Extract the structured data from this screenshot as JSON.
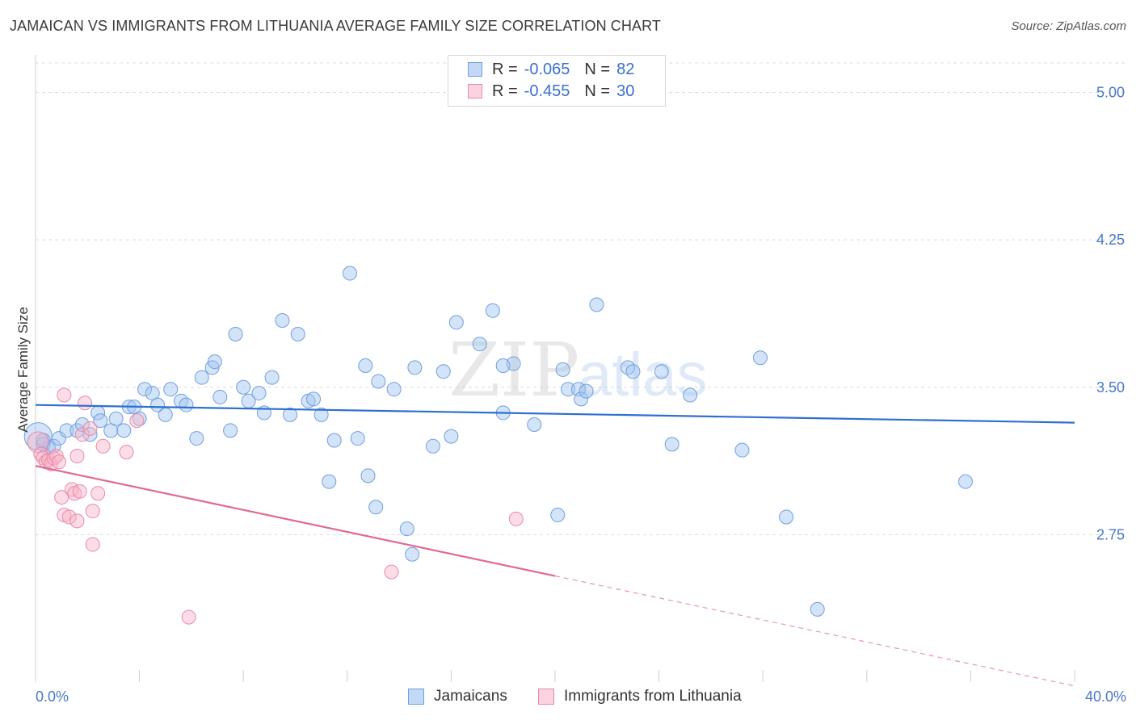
{
  "header": {
    "title": "JAMAICAN VS IMMIGRANTS FROM LITHUANIA AVERAGE FAMILY SIZE CORRELATION CHART",
    "source": "Source: ZipAtlas.com"
  },
  "watermark": {
    "zip": "ZIP",
    "atlas": "atlas"
  },
  "legend_top": [
    {
      "r_label": "R =",
      "r_value": "-0.065",
      "n_label": "N =",
      "n_value": "82",
      "color": "#a9c8f0",
      "border": "#6f9fdf"
    },
    {
      "r_label": "R =",
      "r_value": "-0.455",
      "n_label": "N =",
      "n_value": "30",
      "color": "#f8c3d4",
      "border": "#e88aa9"
    }
  ],
  "legend_bottom": [
    {
      "label": "Jamaicans",
      "color": "#a9c8f0",
      "border": "#6f9fdf"
    },
    {
      "label": "Immigrants from Lithuania",
      "color": "#f8c3d4",
      "border": "#e88aa9"
    }
  ],
  "colors": {
    "blue_fill": "rgba(160,195,240,0.45)",
    "blue_stroke": "#6f9fdf",
    "blue_line": "#2f6fd0",
    "pink_fill": "rgba(248,180,200,0.45)",
    "pink_stroke": "#e88aa9",
    "pink_line": "#e06a92",
    "tick_text": "#4a78c8",
    "grid": "#dcdcdc"
  },
  "chart_data": {
    "type": "scatter",
    "title": "JAMAICAN VS IMMIGRANTS FROM LITHUANIA AVERAGE FAMILY SIZE CORRELATION CHART",
    "xlabel": "",
    "ylabel": "Average Family Size",
    "xlim": [
      0,
      40
    ],
    "ylim": [
      2.0,
      5.15
    ],
    "x_tick_labels": [
      "0.0%",
      "40.0%"
    ],
    "y_ticks": [
      2.75,
      3.5,
      4.25,
      5.0
    ],
    "y_tick_labels": [
      "2.75",
      "3.50",
      "4.25",
      "5.00"
    ],
    "grid": true,
    "legend": "top-center",
    "series": [
      {
        "name": "Jamaicans",
        "R": -0.065,
        "N": 82,
        "trend": {
          "x0": 0,
          "y0": 3.41,
          "x1": 40,
          "y1": 3.32
        },
        "points": [
          [
            0.1,
            3.25
          ],
          [
            0.3,
            3.21
          ],
          [
            0.5,
            3.19
          ],
          [
            0.7,
            3.2
          ],
          [
            0.9,
            3.24
          ],
          [
            1.2,
            3.28
          ],
          [
            1.6,
            3.28
          ],
          [
            1.8,
            3.31
          ],
          [
            2.1,
            3.26
          ],
          [
            2.4,
            3.37
          ],
          [
            2.5,
            3.33
          ],
          [
            2.9,
            3.28
          ],
          [
            3.1,
            3.34
          ],
          [
            3.4,
            3.28
          ],
          [
            3.6,
            3.4
          ],
          [
            3.8,
            3.4
          ],
          [
            4.0,
            3.34
          ],
          [
            4.2,
            3.49
          ],
          [
            4.5,
            3.47
          ],
          [
            4.7,
            3.41
          ],
          [
            5.0,
            3.36
          ],
          [
            5.2,
            3.49
          ],
          [
            5.6,
            3.43
          ],
          [
            5.8,
            3.41
          ],
          [
            6.2,
            3.24
          ],
          [
            6.4,
            3.55
          ],
          [
            6.8,
            3.6
          ],
          [
            6.9,
            3.63
          ],
          [
            7.1,
            3.45
          ],
          [
            7.5,
            3.28
          ],
          [
            7.7,
            3.77
          ],
          [
            8.0,
            3.5
          ],
          [
            8.2,
            3.43
          ],
          [
            8.6,
            3.47
          ],
          [
            8.8,
            3.37
          ],
          [
            9.1,
            3.55
          ],
          [
            9.5,
            3.84
          ],
          [
            9.8,
            3.36
          ],
          [
            10.1,
            3.77
          ],
          [
            10.5,
            3.43
          ],
          [
            10.7,
            3.44
          ],
          [
            11.0,
            3.36
          ],
          [
            11.3,
            3.02
          ],
          [
            11.5,
            3.23
          ],
          [
            12.1,
            4.08
          ],
          [
            12.4,
            3.24
          ],
          [
            12.7,
            3.61
          ],
          [
            12.8,
            3.05
          ],
          [
            13.1,
            2.89
          ],
          [
            13.2,
            3.53
          ],
          [
            13.8,
            3.49
          ],
          [
            14.3,
            2.78
          ],
          [
            14.5,
            2.65
          ],
          [
            14.6,
            3.6
          ],
          [
            15.3,
            3.2
          ],
          [
            15.7,
            3.58
          ],
          [
            16.0,
            3.25
          ],
          [
            16.2,
            3.83
          ],
          [
            17.1,
            3.72
          ],
          [
            17.6,
            3.89
          ],
          [
            18.0,
            3.37
          ],
          [
            18.4,
            3.62
          ],
          [
            18.0,
            3.61
          ],
          [
            19.2,
            3.31
          ],
          [
            20.1,
            2.85
          ],
          [
            20.3,
            3.59
          ],
          [
            20.5,
            3.49
          ],
          [
            20.9,
            3.49
          ],
          [
            21.0,
            3.44
          ],
          [
            21.2,
            3.48
          ],
          [
            21.6,
            3.92
          ],
          [
            22.8,
            3.6
          ],
          [
            23.0,
            3.58
          ],
          [
            24.1,
            3.58
          ],
          [
            24.5,
            3.21
          ],
          [
            25.2,
            3.46
          ],
          [
            27.2,
            3.18
          ],
          [
            27.9,
            3.65
          ],
          [
            28.9,
            2.84
          ],
          [
            30.1,
            2.37
          ],
          [
            35.8,
            3.02
          ],
          [
            0.3,
            3.23
          ]
        ]
      },
      {
        "name": "Immigrants from Lithuania",
        "R": -0.455,
        "N": 30,
        "trend": {
          "x0": 0,
          "y0": 3.1,
          "x1": 20,
          "y1": 2.54,
          "dash_to_x": 40,
          "dash_to_y": 1.98
        },
        "points": [
          [
            0.1,
            3.22
          ],
          [
            0.2,
            3.16
          ],
          [
            0.3,
            3.14
          ],
          [
            0.4,
            3.12
          ],
          [
            0.5,
            3.13
          ],
          [
            0.6,
            3.11
          ],
          [
            0.7,
            3.14
          ],
          [
            0.8,
            3.15
          ],
          [
            0.9,
            3.12
          ],
          [
            1.0,
            2.94
          ],
          [
            1.1,
            2.85
          ],
          [
            1.1,
            3.46
          ],
          [
            1.3,
            2.84
          ],
          [
            1.4,
            2.98
          ],
          [
            1.5,
            2.96
          ],
          [
            1.6,
            2.82
          ],
          [
            1.6,
            3.15
          ],
          [
            1.7,
            2.97
          ],
          [
            1.8,
            3.26
          ],
          [
            1.9,
            3.42
          ],
          [
            2.1,
            3.29
          ],
          [
            2.2,
            2.87
          ],
          [
            2.2,
            2.7
          ],
          [
            2.4,
            2.96
          ],
          [
            2.6,
            3.2
          ],
          [
            3.5,
            3.17
          ],
          [
            3.9,
            3.33
          ],
          [
            5.9,
            2.33
          ],
          [
            13.7,
            2.56
          ],
          [
            18.5,
            2.83
          ]
        ]
      }
    ]
  }
}
